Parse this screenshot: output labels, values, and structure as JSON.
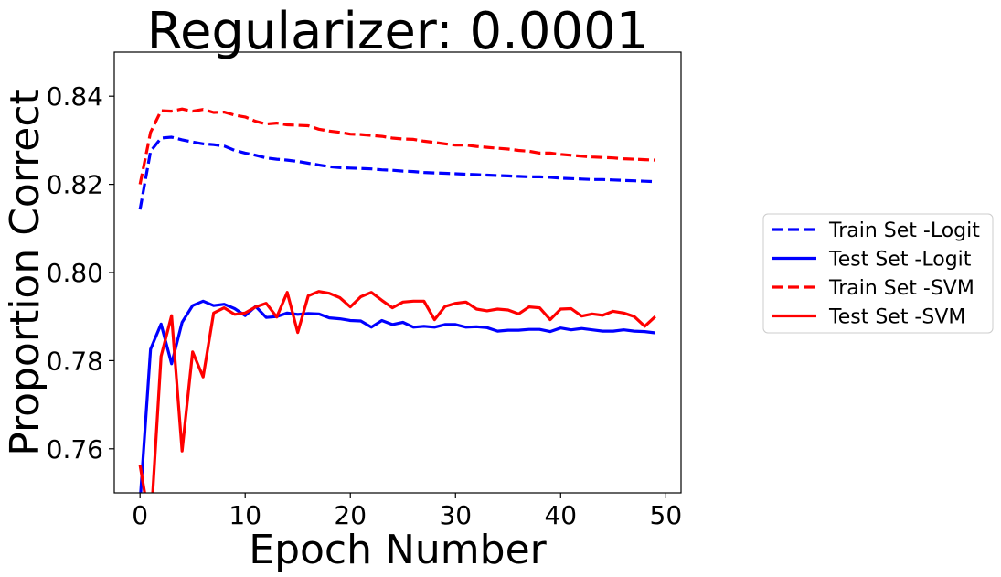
{
  "chart_data": {
    "type": "line",
    "title": "Regularizer: 0.0001",
    "xlabel": "Epoch Number",
    "ylabel": "Proportion Correct",
    "xlim": [
      -2.45,
      51.45
    ],
    "ylim": [
      0.75,
      0.85
    ],
    "xticks": [
      0,
      10,
      20,
      30,
      40,
      50
    ],
    "yticks": [
      0.76,
      0.78,
      0.8,
      0.82,
      0.84
    ],
    "ytick_labels": [
      "0.76",
      "0.78",
      "0.80",
      "0.82",
      "0.84"
    ],
    "grid": false,
    "legend_placement": "outside right",
    "series": [
      {
        "name": "Train Set -Logit",
        "color": "#0000ff",
        "style": "dashed",
        "x": [
          0,
          1,
          2,
          3,
          4,
          5,
          6,
          7,
          8,
          9,
          10,
          11,
          12,
          13,
          14,
          15,
          16,
          17,
          18,
          19,
          20,
          21,
          22,
          23,
          24,
          25,
          26,
          27,
          28,
          29,
          30,
          31,
          32,
          33,
          34,
          35,
          36,
          37,
          38,
          39,
          40,
          41,
          42,
          43,
          44,
          45,
          46,
          47,
          48,
          49
        ],
        "y": [
          0.8143,
          0.8275,
          0.8305,
          0.8307,
          0.8301,
          0.8296,
          0.8292,
          0.829,
          0.8287,
          0.8277,
          0.8271,
          0.8266,
          0.826,
          0.8257,
          0.8255,
          0.8252,
          0.8248,
          0.8244,
          0.824,
          0.8238,
          0.8237,
          0.8236,
          0.8235,
          0.8233,
          0.8232,
          0.823,
          0.8229,
          0.8227,
          0.8226,
          0.8225,
          0.8224,
          0.8223,
          0.8222,
          0.8221,
          0.822,
          0.8219,
          0.8218,
          0.8217,
          0.8217,
          0.8216,
          0.8214,
          0.8213,
          0.8212,
          0.8211,
          0.8211,
          0.821,
          0.8209,
          0.8208,
          0.8207,
          0.8206
        ]
      },
      {
        "name": "Test Set -Logit",
        "color": "#0000ff",
        "style": "solid",
        "x": [
          0,
          1,
          2,
          3,
          4,
          5,
          6,
          7,
          8,
          9,
          10,
          11,
          12,
          13,
          14,
          15,
          16,
          17,
          18,
          19,
          20,
          21,
          22,
          23,
          24,
          25,
          26,
          27,
          28,
          29,
          30,
          31,
          32,
          33,
          34,
          35,
          36,
          37,
          38,
          39,
          40,
          41,
          42,
          43,
          44,
          45,
          46,
          47,
          48,
          49
        ],
        "y": [
          0.748,
          0.7826,
          0.7883,
          0.7793,
          0.7887,
          0.7925,
          0.7935,
          0.7925,
          0.7928,
          0.7918,
          0.7902,
          0.7923,
          0.7898,
          0.79,
          0.7908,
          0.7905,
          0.7907,
          0.7906,
          0.7897,
          0.7895,
          0.7891,
          0.789,
          0.7876,
          0.7891,
          0.7882,
          0.7887,
          0.7876,
          0.7878,
          0.7876,
          0.7882,
          0.7882,
          0.7876,
          0.7877,
          0.7875,
          0.7867,
          0.7869,
          0.7869,
          0.7871,
          0.7871,
          0.7866,
          0.7874,
          0.787,
          0.7873,
          0.787,
          0.7867,
          0.7867,
          0.787,
          0.7867,
          0.7866,
          0.7863
        ]
      },
      {
        "name": "Train Set -SVM",
        "color": "#ff0000",
        "style": "dashed",
        "x": [
          0,
          1,
          2,
          3,
          4,
          5,
          6,
          7,
          8,
          9,
          10,
          11,
          12,
          13,
          14,
          15,
          16,
          17,
          18,
          19,
          20,
          21,
          22,
          23,
          24,
          25,
          26,
          27,
          28,
          29,
          30,
          31,
          32,
          33,
          34,
          35,
          36,
          37,
          38,
          39,
          40,
          41,
          42,
          43,
          44,
          45,
          46,
          47,
          48,
          49
        ],
        "y": [
          0.82,
          0.8318,
          0.8367,
          0.8366,
          0.8371,
          0.8366,
          0.837,
          0.8363,
          0.8364,
          0.8357,
          0.8353,
          0.8343,
          0.8337,
          0.8339,
          0.8335,
          0.8334,
          0.8333,
          0.8325,
          0.8321,
          0.8318,
          0.8314,
          0.8313,
          0.8311,
          0.8309,
          0.8305,
          0.8303,
          0.8302,
          0.8298,
          0.8295,
          0.8292,
          0.8289,
          0.8289,
          0.8286,
          0.8284,
          0.8282,
          0.828,
          0.8277,
          0.8275,
          0.8271,
          0.8271,
          0.8268,
          0.8266,
          0.8264,
          0.8262,
          0.8261,
          0.826,
          0.8258,
          0.8257,
          0.8256,
          0.8255
        ]
      },
      {
        "name": "Test Set -SVM",
        "color": "#ff0000",
        "style": "solid",
        "x": [
          0,
          1,
          2,
          3,
          4,
          5,
          6,
          7,
          8,
          9,
          10,
          11,
          12,
          13,
          14,
          15,
          16,
          17,
          18,
          19,
          20,
          21,
          22,
          23,
          24,
          25,
          26,
          27,
          28,
          29,
          30,
          31,
          32,
          33,
          34,
          35,
          36,
          37,
          38,
          39,
          40,
          41,
          42,
          43,
          44,
          45,
          46,
          47,
          48,
          49
        ],
        "y": [
          0.7563,
          0.742,
          0.781,
          0.7902,
          0.7595,
          0.782,
          0.7763,
          0.7908,
          0.792,
          0.7905,
          0.7908,
          0.7922,
          0.793,
          0.7899,
          0.7955,
          0.7864,
          0.7947,
          0.7957,
          0.7953,
          0.7943,
          0.7922,
          0.7945,
          0.7955,
          0.7937,
          0.792,
          0.7933,
          0.7935,
          0.7935,
          0.7893,
          0.7923,
          0.793,
          0.7933,
          0.7917,
          0.7913,
          0.7917,
          0.7915,
          0.7906,
          0.7922,
          0.792,
          0.7893,
          0.7917,
          0.7918,
          0.7901,
          0.7906,
          0.7903,
          0.7912,
          0.7908,
          0.79,
          0.7878,
          0.79
        ]
      }
    ]
  }
}
